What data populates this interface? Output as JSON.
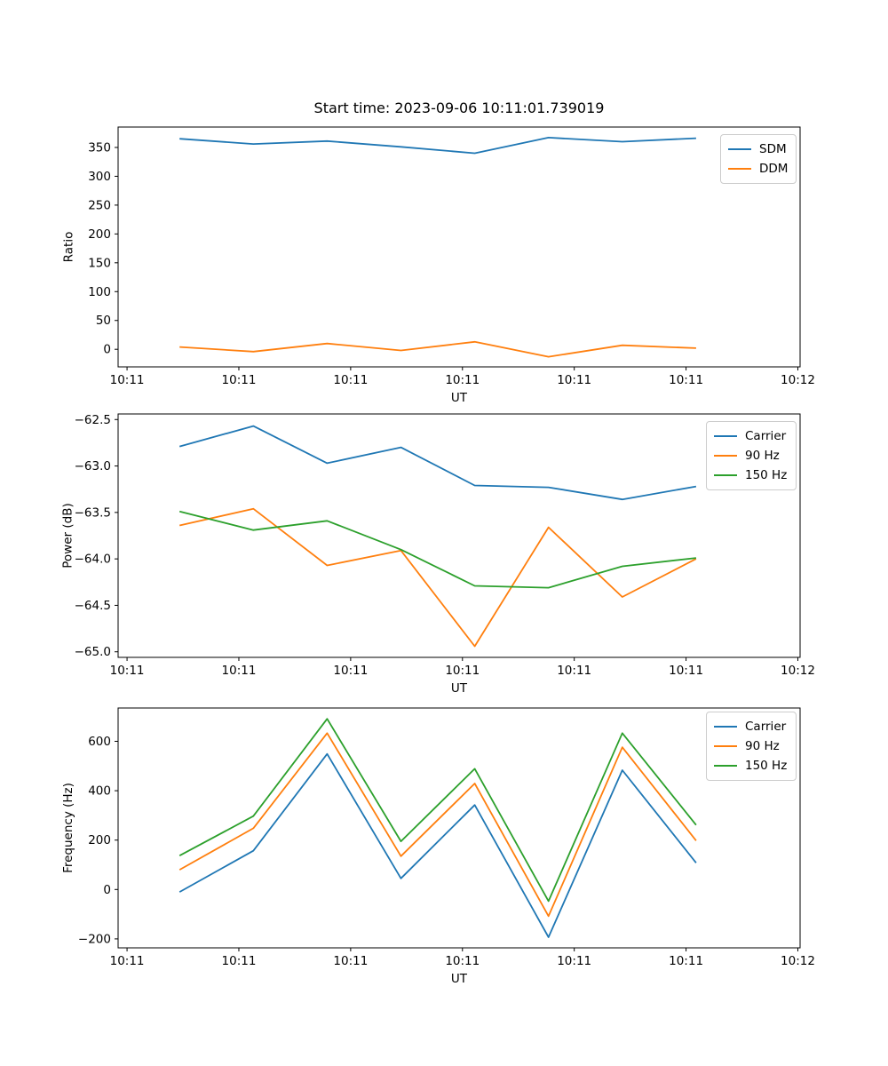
{
  "figure": {
    "title": "Start time: 2023-09-06 10:11:01.739019",
    "background_color": "#ffffff",
    "axes_edge_color": "#000000",
    "legend_border_color": "#cccccc"
  },
  "chart_data": [
    {
      "type": "line",
      "title": "",
      "xlabel": "UT",
      "ylabel": "Ratio",
      "grid": false,
      "legend_position": "upper right",
      "xlim_seconds_after_10_11_00": [
        -0.8,
        60.2
      ],
      "ylim": [
        -30.5,
        385.4
      ],
      "x_seconds_after_10_11_00": [
        4.7,
        11.3,
        17.9,
        24.5,
        31.1,
        37.7,
        44.3,
        50.9
      ],
      "xticks": {
        "values": [
          0,
          10,
          20,
          30,
          40,
          50,
          60
        ],
        "labels": [
          "10:11",
          "10:11",
          "10:11",
          "10:11",
          "10:11",
          "10:11",
          "10:12"
        ]
      },
      "yticks": {
        "values": [
          0,
          50,
          100,
          150,
          200,
          250,
          300,
          350
        ],
        "labels": [
          "0",
          "50",
          "100",
          "150",
          "200",
          "250",
          "300",
          "350"
        ]
      },
      "series": [
        {
          "name": "SDM",
          "color": "#1f77b4",
          "values": [
            365,
            356,
            361,
            351,
            340,
            367,
            360,
            366
          ]
        },
        {
          "name": "DDM",
          "color": "#ff7f0e",
          "values": [
            4,
            -4,
            10,
            -2,
            13,
            -13,
            7,
            2
          ]
        }
      ]
    },
    {
      "type": "line",
      "title": "",
      "xlabel": "UT",
      "ylabel": "Power (dB)",
      "grid": false,
      "legend_position": "upper right",
      "xlim_seconds_after_10_11_00": [
        -0.8,
        60.2
      ],
      "ylim": [
        -65.06,
        -62.44
      ],
      "x_seconds_after_10_11_00": [
        4.7,
        11.3,
        17.9,
        24.5,
        31.1,
        37.7,
        44.3,
        50.9
      ],
      "xticks": {
        "values": [
          0,
          10,
          20,
          30,
          40,
          50,
          60
        ],
        "labels": [
          "10:11",
          "10:11",
          "10:11",
          "10:11",
          "10:11",
          "10:11",
          "10:12"
        ]
      },
      "yticks": {
        "values": [
          -62.5,
          -63.0,
          -63.5,
          -64.0,
          -64.5,
          -65.0
        ],
        "labels": [
          "−62.5",
          "−63.0",
          "−63.5",
          "−64.0",
          "−64.5",
          "−65.0"
        ]
      },
      "series": [
        {
          "name": "Carrier",
          "color": "#1f77b4",
          "values": [
            -62.79,
            -62.57,
            -62.97,
            -62.8,
            -63.21,
            -63.23,
            -63.36,
            -63.22
          ]
        },
        {
          "name": "90 Hz",
          "color": "#ff7f0e",
          "values": [
            -63.64,
            -63.46,
            -64.07,
            -63.91,
            -64.94,
            -63.66,
            -64.41,
            -64.0
          ]
        },
        {
          "name": "150 Hz",
          "color": "#2ca02c",
          "values": [
            -63.49,
            -63.69,
            -63.59,
            -63.9,
            -64.29,
            -64.31,
            -64.08,
            -63.99
          ]
        }
      ]
    },
    {
      "type": "line",
      "title": "",
      "xlabel": "UT",
      "ylabel": "Frequency (Hz)",
      "grid": false,
      "legend_position": "upper right",
      "xlim_seconds_after_10_11_00": [
        -0.8,
        60.2
      ],
      "ylim": [
        -236.3,
        734.9
      ],
      "x_seconds_after_10_11_00": [
        4.7,
        11.3,
        17.9,
        24.5,
        31.1,
        37.7,
        44.3,
        50.9
      ],
      "xticks": {
        "values": [
          0,
          10,
          20,
          30,
          40,
          50,
          60
        ],
        "labels": [
          "10:11",
          "10:11",
          "10:11",
          "10:11",
          "10:11",
          "10:11",
          "10:12"
        ]
      },
      "yticks": {
        "values": [
          -200,
          0,
          200,
          400,
          600
        ],
        "labels": [
          "−200",
          "0",
          "200",
          "400",
          "600"
        ]
      },
      "series": [
        {
          "name": "Carrier",
          "color": "#1f77b4",
          "values": [
            -10,
            157,
            549,
            45,
            342,
            -193,
            483,
            108
          ]
        },
        {
          "name": "90 Hz",
          "color": "#ff7f0e",
          "values": [
            80,
            248,
            633,
            135,
            429,
            -108,
            576,
            198
          ]
        },
        {
          "name": "150 Hz",
          "color": "#2ca02c",
          "values": [
            137,
            297,
            691,
            195,
            489,
            -47,
            633,
            261
          ]
        }
      ]
    }
  ]
}
